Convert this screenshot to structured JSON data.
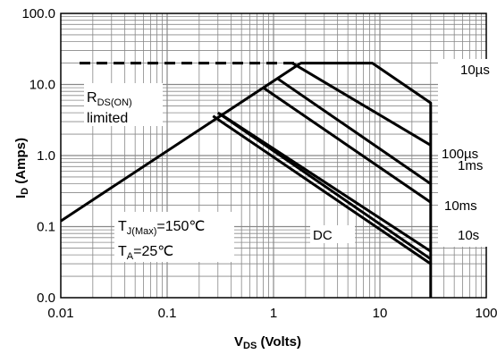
{
  "chart_data": {
    "type": "line",
    "title": "",
    "x_scale": "log",
    "y_scale": "log",
    "xlim": [
      0.01,
      100
    ],
    "ylim": [
      0.01,
      100
    ],
    "grid": true,
    "x_ticks": [
      {
        "value": 0.01,
        "label": "0.01"
      },
      {
        "value": 0.1,
        "label": "0.1"
      },
      {
        "value": 1,
        "label": "1"
      },
      {
        "value": 10,
        "label": "10"
      },
      {
        "value": 100,
        "label": "100"
      }
    ],
    "y_ticks": [
      {
        "value": 100,
        "label": "100.0"
      },
      {
        "value": 10,
        "label": "10.0"
      },
      {
        "value": 1,
        "label": "1.0"
      },
      {
        "value": 0.1,
        "label": "0.1"
      },
      {
        "value": 0.01,
        "label": "0.0"
      }
    ],
    "xlabel": {
      "main": "V",
      "sub": "DS",
      "rest": " (Volts)"
    },
    "ylabel": {
      "main": "I",
      "sub": "D",
      "rest": " (Amps)"
    },
    "annotations": {
      "rds_main": "R",
      "rds_sub": "DS(ON)",
      "rds_line2": "limited",
      "tj_main": "T",
      "tj_sub": "J(Max)",
      "tj_rest": "=150℃",
      "ta_main": "T",
      "ta_sub": "A",
      "ta_rest": "=25℃"
    },
    "series": [
      {
        "name": "10µs",
        "points": [
          [
            1.8,
            20
          ],
          [
            8.5,
            20
          ],
          [
            30,
            5.5
          ],
          [
            30,
            0.01
          ]
        ]
      },
      {
        "name": "100µs",
        "points": [
          [
            1.5,
            20
          ],
          [
            30,
            1.4
          ]
        ]
      },
      {
        "name": "1ms",
        "points": [
          [
            1.1,
            12
          ],
          [
            30,
            0.4
          ]
        ]
      },
      {
        "name": "10ms",
        "points": [
          [
            0.8,
            9
          ],
          [
            30,
            0.22
          ]
        ]
      },
      {
        "name": "10s",
        "points": [
          [
            0.32,
            3.8
          ],
          [
            30,
            0.045
          ]
        ]
      },
      {
        "name": "DC",
        "points": [
          [
            0.27,
            3.6
          ],
          [
            30,
            0.03
          ]
        ]
      }
    ],
    "extra_lines": [
      {
        "id": "rds-limit-line",
        "style": "dashed",
        "points": [
          [
            0.015,
            20
          ],
          [
            1.8,
            20
          ]
        ]
      },
      {
        "id": "envelope-line",
        "style": "solid",
        "points": [
          [
            0.01,
            0.12
          ],
          [
            1.8,
            20
          ]
        ]
      },
      {
        "id": "dc-extra-line",
        "style": "solid",
        "points": [
          [
            0.3,
            4.0
          ],
          [
            30,
            0.035
          ]
        ]
      }
    ],
    "line_color": "#000000",
    "grid_color": "#888888"
  }
}
